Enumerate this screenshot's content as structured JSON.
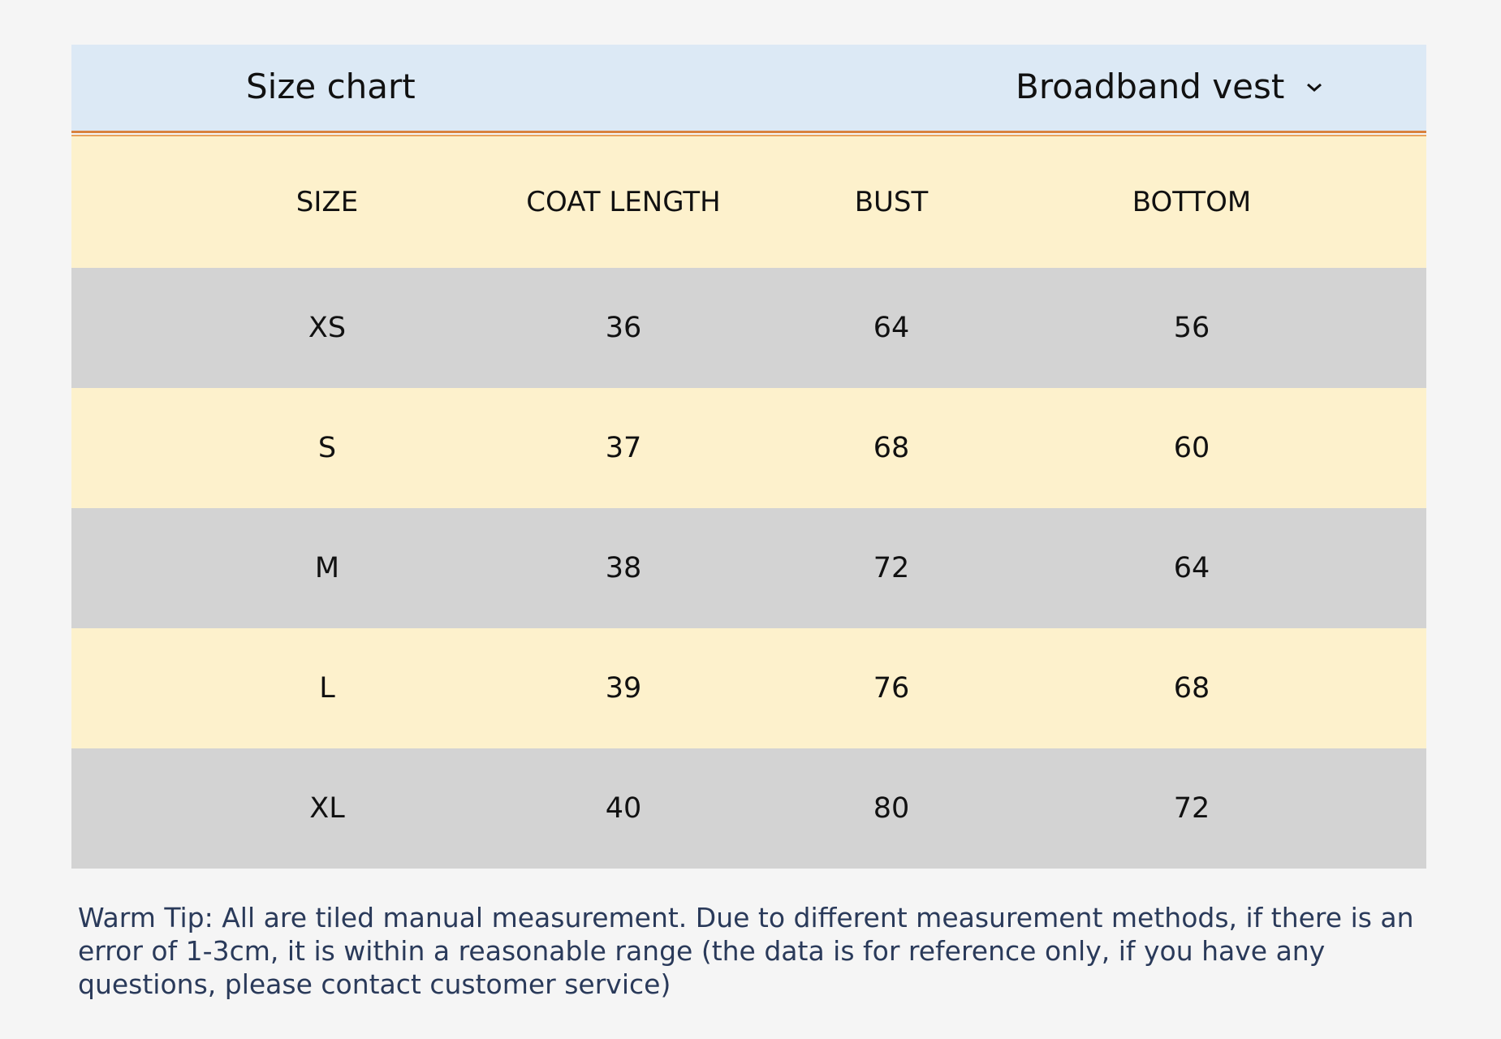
{
  "header": {
    "title": "Size chart",
    "product": "Broadband vest"
  },
  "table": {
    "columns": [
      "SIZE",
      "COAT LENGTH",
      "BUST",
      "BOTTOM"
    ],
    "rows": [
      [
        "XS",
        36,
        64,
        56
      ],
      [
        "S",
        37,
        68,
        60
      ],
      [
        "M",
        38,
        72,
        64
      ],
      [
        "L",
        39,
        76,
        68
      ],
      [
        "XL",
        40,
        80,
        72
      ]
    ]
  },
  "tip": "Warm Tip: All are tiled manual measurement. Due to different measurement methods, if there is an error of 1-3cm, it is within a reasonable range (the data is for reference only, if you have any questions, please contact customer service)"
}
